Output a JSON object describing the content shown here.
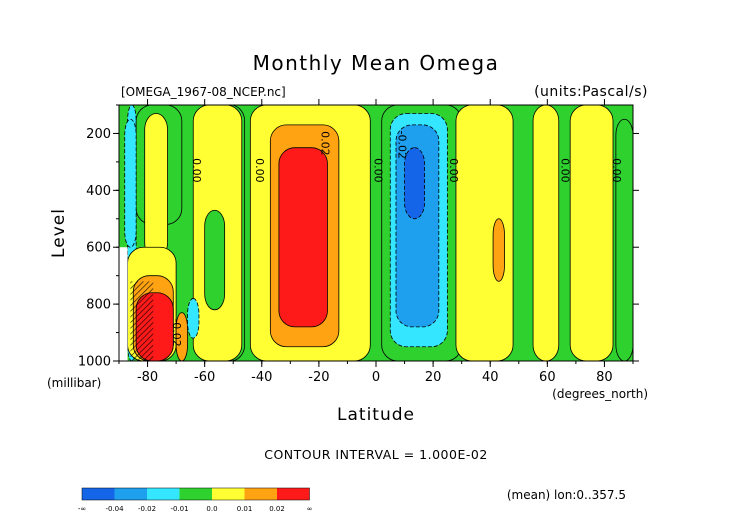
{
  "chart_data": {
    "type": "heatmap",
    "title": "Monthly Mean Omega",
    "file_label": "[OMEGA_1967-08_NCEP.nc]",
    "units_label": "(units:Pascal/s)",
    "xlabel": "Latitude",
    "x_units": "(degrees_north)",
    "ylabel": "Level",
    "y_units": "(millibar)",
    "xlim": [
      -90,
      90
    ],
    "ylim": [
      1000,
      100
    ],
    "x_ticks": [
      "-80",
      "-60",
      "-40",
      "-20",
      "0",
      "20",
      "40",
      "60",
      "80"
    ],
    "x_tick_values": [
      -80,
      -60,
      -40,
      -20,
      0,
      20,
      40,
      60,
      80
    ],
    "y_ticks": [
      "200",
      "400",
      "600",
      "800",
      "1000"
    ],
    "y_tick_values": [
      200,
      400,
      600,
      800,
      1000
    ],
    "contour_interval_text": "CONTOUR INTERVAL = 1.000E-02",
    "footer_note": "(mean) lon:0..357.5",
    "contour_labels": [
      {
        "text": "0.00",
        "lat": -63,
        "level": 330
      },
      {
        "text": "0.00",
        "lat": -41,
        "level": 330
      },
      {
        "text": "0.02",
        "lat": -18,
        "level": 235
      },
      {
        "text": "0.00",
        "lat": 0.5,
        "level": 330
      },
      {
        "text": "-0.02",
        "lat": 9,
        "level": 240
      },
      {
        "text": "0.00",
        "lat": 27,
        "level": 330
      },
      {
        "text": "0.00",
        "lat": 66,
        "level": 330
      },
      {
        "text": "0.00",
        "lat": 84,
        "level": 330
      },
      {
        "text": "-0.02",
        "lat": -70,
        "level": 900
      }
    ],
    "regions": [
      {
        "bin": 2,
        "lat0": -87,
        "lat1": -84,
        "lev0": 100,
        "lev1": 1000
      },
      {
        "bin": 3,
        "lat0": -84,
        "lat1": -68,
        "lev0": 100,
        "lev1": 520
      },
      {
        "bin": 3,
        "lat0": -56,
        "lat1": -46,
        "lev0": 100,
        "lev1": 1000
      },
      {
        "bin": 4,
        "lat0": -81,
        "lat1": -73,
        "lev0": 130,
        "lev1": 640
      },
      {
        "bin": 4,
        "lat0": -64,
        "lat1": -47,
        "lev0": 100,
        "lev1": 1000
      },
      {
        "bin": 3,
        "lat0": -60,
        "lat1": -53,
        "lev0": 470,
        "lev1": 820
      },
      {
        "bin": 4,
        "lat0": -44,
        "lat1": -2,
        "lev0": 100,
        "lev1": 1000
      },
      {
        "bin": 5,
        "lat0": -37,
        "lat1": -13,
        "lev0": 170,
        "lev1": 950
      },
      {
        "bin": 6,
        "lat0": -34,
        "lat1": -17,
        "lev0": 250,
        "lev1": 880
      },
      {
        "bin": 3,
        "lat0": 2,
        "lat1": 30,
        "lev0": 100,
        "lev1": 1000
      },
      {
        "bin": 2,
        "lat0": 5,
        "lat1": 25,
        "lev0": 130,
        "lev1": 950
      },
      {
        "bin": 1,
        "lat0": 7,
        "lat1": 22,
        "lev0": 170,
        "lev1": 880
      },
      {
        "bin": 0,
        "lat0": 10,
        "lat1": 17,
        "lev0": 250,
        "lev1": 500
      },
      {
        "bin": 4,
        "lat0": 28,
        "lat1": 48,
        "lev0": 100,
        "lev1": 1000
      },
      {
        "bin": 5,
        "lat0": 41,
        "lat1": 45,
        "lev0": 500,
        "lev1": 720
      },
      {
        "bin": 4,
        "lat0": 55,
        "lat1": 64,
        "lev0": 100,
        "lev1": 1000
      },
      {
        "bin": 4,
        "lat0": 68,
        "lat1": 83,
        "lev0": 100,
        "lev1": 1000
      },
      {
        "bin": 3,
        "lat0": 84,
        "lat1": 90,
        "lev0": 150,
        "lev1": 1000
      },
      {
        "bin": 2,
        "lat0": -88,
        "lat1": -84,
        "lev0": 150,
        "lev1": 600
      },
      {
        "bin": 4,
        "lat0": -87,
        "lat1": -70,
        "lev0": 600,
        "lev1": 1000
      },
      {
        "bin": 5,
        "lat0": -85,
        "lat1": -71,
        "lev0": 700,
        "lev1": 1000
      },
      {
        "bin": 6,
        "lat0": -84,
        "lat1": -71,
        "lev0": 760,
        "lev1": 1000
      },
      {
        "bin": 5,
        "lat0": -70,
        "lat1": -66,
        "lev0": 830,
        "lev1": 1000
      },
      {
        "bin": 2,
        "lat0": -66,
        "lat1": -62,
        "lev0": 780,
        "lev1": 920
      }
    ],
    "hatch_region": {
      "lat0": -86,
      "lat1": -78,
      "lev0": 720,
      "lev1": 1000
    },
    "missing_region": {
      "lat0": -90,
      "lat1": -87,
      "lev0": 600,
      "lev1": 1000
    },
    "legend": {
      "colors": [
        "#1565e8",
        "#1ea0ee",
        "#34e6ff",
        "#2fd12f",
        "#ffff33",
        "#ffa312",
        "#ff1a1a"
      ],
      "labels": [
        "-∞",
        "-0.04",
        "-0.02",
        "-0.01",
        "0.0",
        "0.01",
        "0.02",
        "∞"
      ]
    }
  }
}
